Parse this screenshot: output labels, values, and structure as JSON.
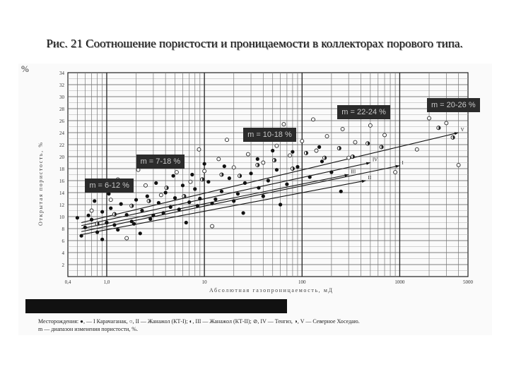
{
  "slide": {
    "title": "Рис. 21 Соотношение пористости и проницаемости в коллекторах порового типа.",
    "scan_corner_mark": "%"
  },
  "legend": {
    "line1": "Месторождения: ●, — I Карачаганак, ○, II — Жанажол (КТ-I); ◐, III — Жанажол (КТ-II); ⊘, IV — Тенгиз, ◑, V — Северное Хоседаю.",
    "line2": "m — диапазон изменения пористости, %."
  },
  "chart_data": {
    "type": "scatter",
    "xscale": "log",
    "xlim": [
      0.4,
      5000
    ],
    "ylim": [
      0,
      34
    ],
    "xlabel": "Абсолютная газопроницаемость, мД",
    "ylabel": "Открытая пористость, %",
    "x_ticks": [
      "0,4",
      "1,0",
      "10",
      "100",
      "1000",
      "5000"
    ],
    "x_tick_values": [
      0.4,
      1,
      10,
      100,
      1000,
      5000
    ],
    "y_ticks": [
      "2",
      "4",
      "6",
      "8",
      "10",
      "12",
      "14",
      "16",
      "18",
      "20",
      "22",
      "24",
      "26",
      "28",
      "30",
      "32",
      "34"
    ],
    "y_tick_values": [
      2,
      4,
      6,
      8,
      10,
      12,
      14,
      16,
      18,
      20,
      22,
      24,
      26,
      28,
      30,
      32,
      34
    ],
    "range_labels": [
      {
        "text": "m = 6-12 %",
        "x": 0.6,
        "y": 16.3
      },
      {
        "text": "m = 7-18 %",
        "x": 2.0,
        "y": 20.4
      },
      {
        "text": "m = 10-18 %",
        "x": 25,
        "y": 24.8
      },
      {
        "text": "m = 22-24 %",
        "x": 230,
        "y": 28.6
      },
      {
        "text": "m = 20-26 %",
        "x": 1900,
        "y": 29.8
      }
    ],
    "trend_lines": [
      {
        "name": "I",
        "from": [
          0.55,
          7.5
        ],
        "to": [
          1000,
          18.5
        ]
      },
      {
        "name": "II",
        "from": [
          0.55,
          7.0
        ],
        "to": [
          450,
          16.0
        ]
      },
      {
        "name": "III",
        "from": [
          0.55,
          8.0
        ],
        "to": [
          300,
          17.0
        ]
      },
      {
        "name": "IV",
        "from": [
          0.55,
          8.5
        ],
        "to": [
          500,
          19.0
        ]
      },
      {
        "name": "V",
        "from": [
          0.55,
          9.0
        ],
        "to": [
          4000,
          24.0
        ]
      }
    ],
    "series": [
      {
        "marker": "filled",
        "points": [
          [
            0.6,
            8.2
          ],
          [
            0.7,
            9.5
          ],
          [
            0.8,
            7.4
          ],
          [
            0.9,
            10.8
          ],
          [
            1.0,
            9.0
          ],
          [
            1.1,
            11.4
          ],
          [
            1.2,
            8.6
          ],
          [
            1.4,
            12.1
          ],
          [
            1.6,
            10.3
          ],
          [
            1.8,
            9.2
          ],
          [
            2.0,
            12.8
          ],
          [
            2.3,
            11.0
          ],
          [
            2.6,
            13.4
          ],
          [
            3.0,
            10.2
          ],
          [
            3.4,
            12.3
          ],
          [
            4.0,
            14.0
          ],
          [
            4.5,
            11.6
          ],
          [
            5.0,
            13.1
          ],
          [
            6.0,
            15.2
          ],
          [
            7.0,
            12.4
          ],
          [
            8.0,
            14.6
          ],
          [
            9.0,
            13.0
          ],
          [
            11,
            15.8
          ],
          [
            13,
            12.9
          ],
          [
            15,
            14.2
          ],
          [
            18,
            16.4
          ],
          [
            22,
            13.8
          ],
          [
            26,
            15.6
          ],
          [
            30,
            17.2
          ],
          [
            36,
            14.8
          ],
          [
            45,
            16.0
          ],
          [
            55,
            17.8
          ],
          [
            70,
            15.4
          ],
          [
            90,
            18.3
          ],
          [
            120,
            16.6
          ],
          [
            160,
            19.2
          ],
          [
            200,
            17.4
          ],
          [
            250,
            14.2
          ],
          [
            0.55,
            6.8
          ],
          [
            0.65,
            10.2
          ],
          [
            1.3,
            7.8
          ],
          [
            1.9,
            8.8
          ],
          [
            2.8,
            9.6
          ],
          [
            3.8,
            10.6
          ],
          [
            5.5,
            11.2
          ],
          [
            8.5,
            11.8
          ],
          [
            12,
            12.2
          ],
          [
            20,
            12.6
          ],
          [
            40,
            13.4
          ],
          [
            0.75,
            12.6
          ],
          [
            1.5,
            14.8
          ],
          [
            3.2,
            15.6
          ],
          [
            7.5,
            17.0
          ],
          [
            16,
            18.4
          ],
          [
            35,
            19.6
          ],
          [
            80,
            20.8
          ],
          [
            150,
            21.6
          ],
          [
            0.9,
            6.2
          ],
          [
            2.2,
            7.2
          ],
          [
            6.5,
            9.0
          ],
          [
            25,
            10.6
          ],
          [
            60,
            12.0
          ],
          [
            0.5,
            9.8
          ],
          [
            1.05,
            13.8
          ],
          [
            4.8,
            16.8
          ],
          [
            10,
            18.8
          ],
          [
            50,
            21.0
          ]
        ]
      },
      {
        "marker": "open",
        "points": [
          [
            0.7,
            11.0
          ],
          [
            1.1,
            12.8
          ],
          [
            1.7,
            14.4
          ],
          [
            2.5,
            15.2
          ],
          [
            3.6,
            13.6
          ],
          [
            5.2,
            17.4
          ],
          [
            7.2,
            15.8
          ],
          [
            10,
            17.6
          ],
          [
            14,
            19.6
          ],
          [
            20,
            18.2
          ],
          [
            28,
            20.4
          ],
          [
            40,
            19.0
          ],
          [
            55,
            21.8
          ],
          [
            75,
            20.2
          ],
          [
            100,
            22.6
          ],
          [
            140,
            21.0
          ],
          [
            180,
            23.4
          ],
          [
            260,
            24.6
          ],
          [
            350,
            22.4
          ],
          [
            500,
            25.2
          ],
          [
            700,
            23.6
          ],
          [
            1500,
            21.2
          ],
          [
            2000,
            26.4
          ],
          [
            3000,
            25.6
          ],
          [
            4000,
            18.6
          ],
          [
            1.3,
            16.2
          ],
          [
            2.1,
            17.8
          ],
          [
            4.2,
            19.6
          ],
          [
            8.8,
            21.2
          ],
          [
            17,
            22.8
          ],
          [
            33,
            24.2
          ],
          [
            65,
            25.4
          ],
          [
            130,
            26.2
          ],
          [
            300,
            19.8
          ],
          [
            900,
            17.4
          ],
          [
            1.6,
            6.4
          ],
          [
            12,
            8.4
          ]
        ]
      },
      {
        "marker": "half",
        "points": [
          [
            0.8,
            8.8
          ],
          [
            1.2,
            10.4
          ],
          [
            1.8,
            11.8
          ],
          [
            2.7,
            12.6
          ],
          [
            4.1,
            14.8
          ],
          [
            6.2,
            13.4
          ],
          [
            9.5,
            16.2
          ],
          [
            15,
            17.0
          ],
          [
            23,
            16.8
          ],
          [
            35,
            18.6
          ],
          [
            52,
            19.4
          ],
          [
            80,
            18.0
          ],
          [
            110,
            20.6
          ],
          [
            170,
            19.8
          ],
          [
            240,
            21.4
          ],
          [
            330,
            20.0
          ],
          [
            470,
            22.2
          ],
          [
            650,
            21.6
          ],
          [
            2500,
            24.8
          ],
          [
            3500,
            23.2
          ]
        ]
      }
    ]
  }
}
